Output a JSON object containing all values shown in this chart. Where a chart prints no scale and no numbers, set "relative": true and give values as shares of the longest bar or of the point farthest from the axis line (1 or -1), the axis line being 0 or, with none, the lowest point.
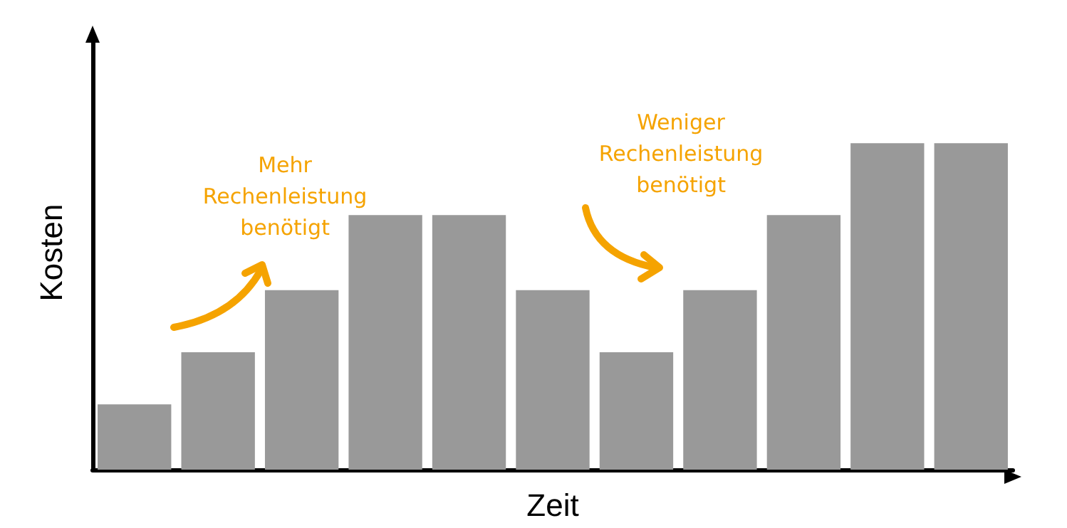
{
  "chart_data": {
    "type": "bar",
    "relative": true,
    "xlabel": "Zeit",
    "ylabel": "Kosten",
    "categories": [
      null,
      null,
      null,
      null,
      null,
      null,
      null,
      null,
      null,
      null,
      null
    ],
    "values": [
      0.2,
      0.36,
      0.55,
      0.78,
      0.78,
      0.55,
      0.36,
      0.55,
      0.78,
      1,
      1
    ],
    "color": "#999999",
    "grid": false,
    "annotations": [
      "Mehr\nRechenleistung\nbenötigt",
      "Weniger\nRechenleistung\nbenötigt"
    ]
  }
}
